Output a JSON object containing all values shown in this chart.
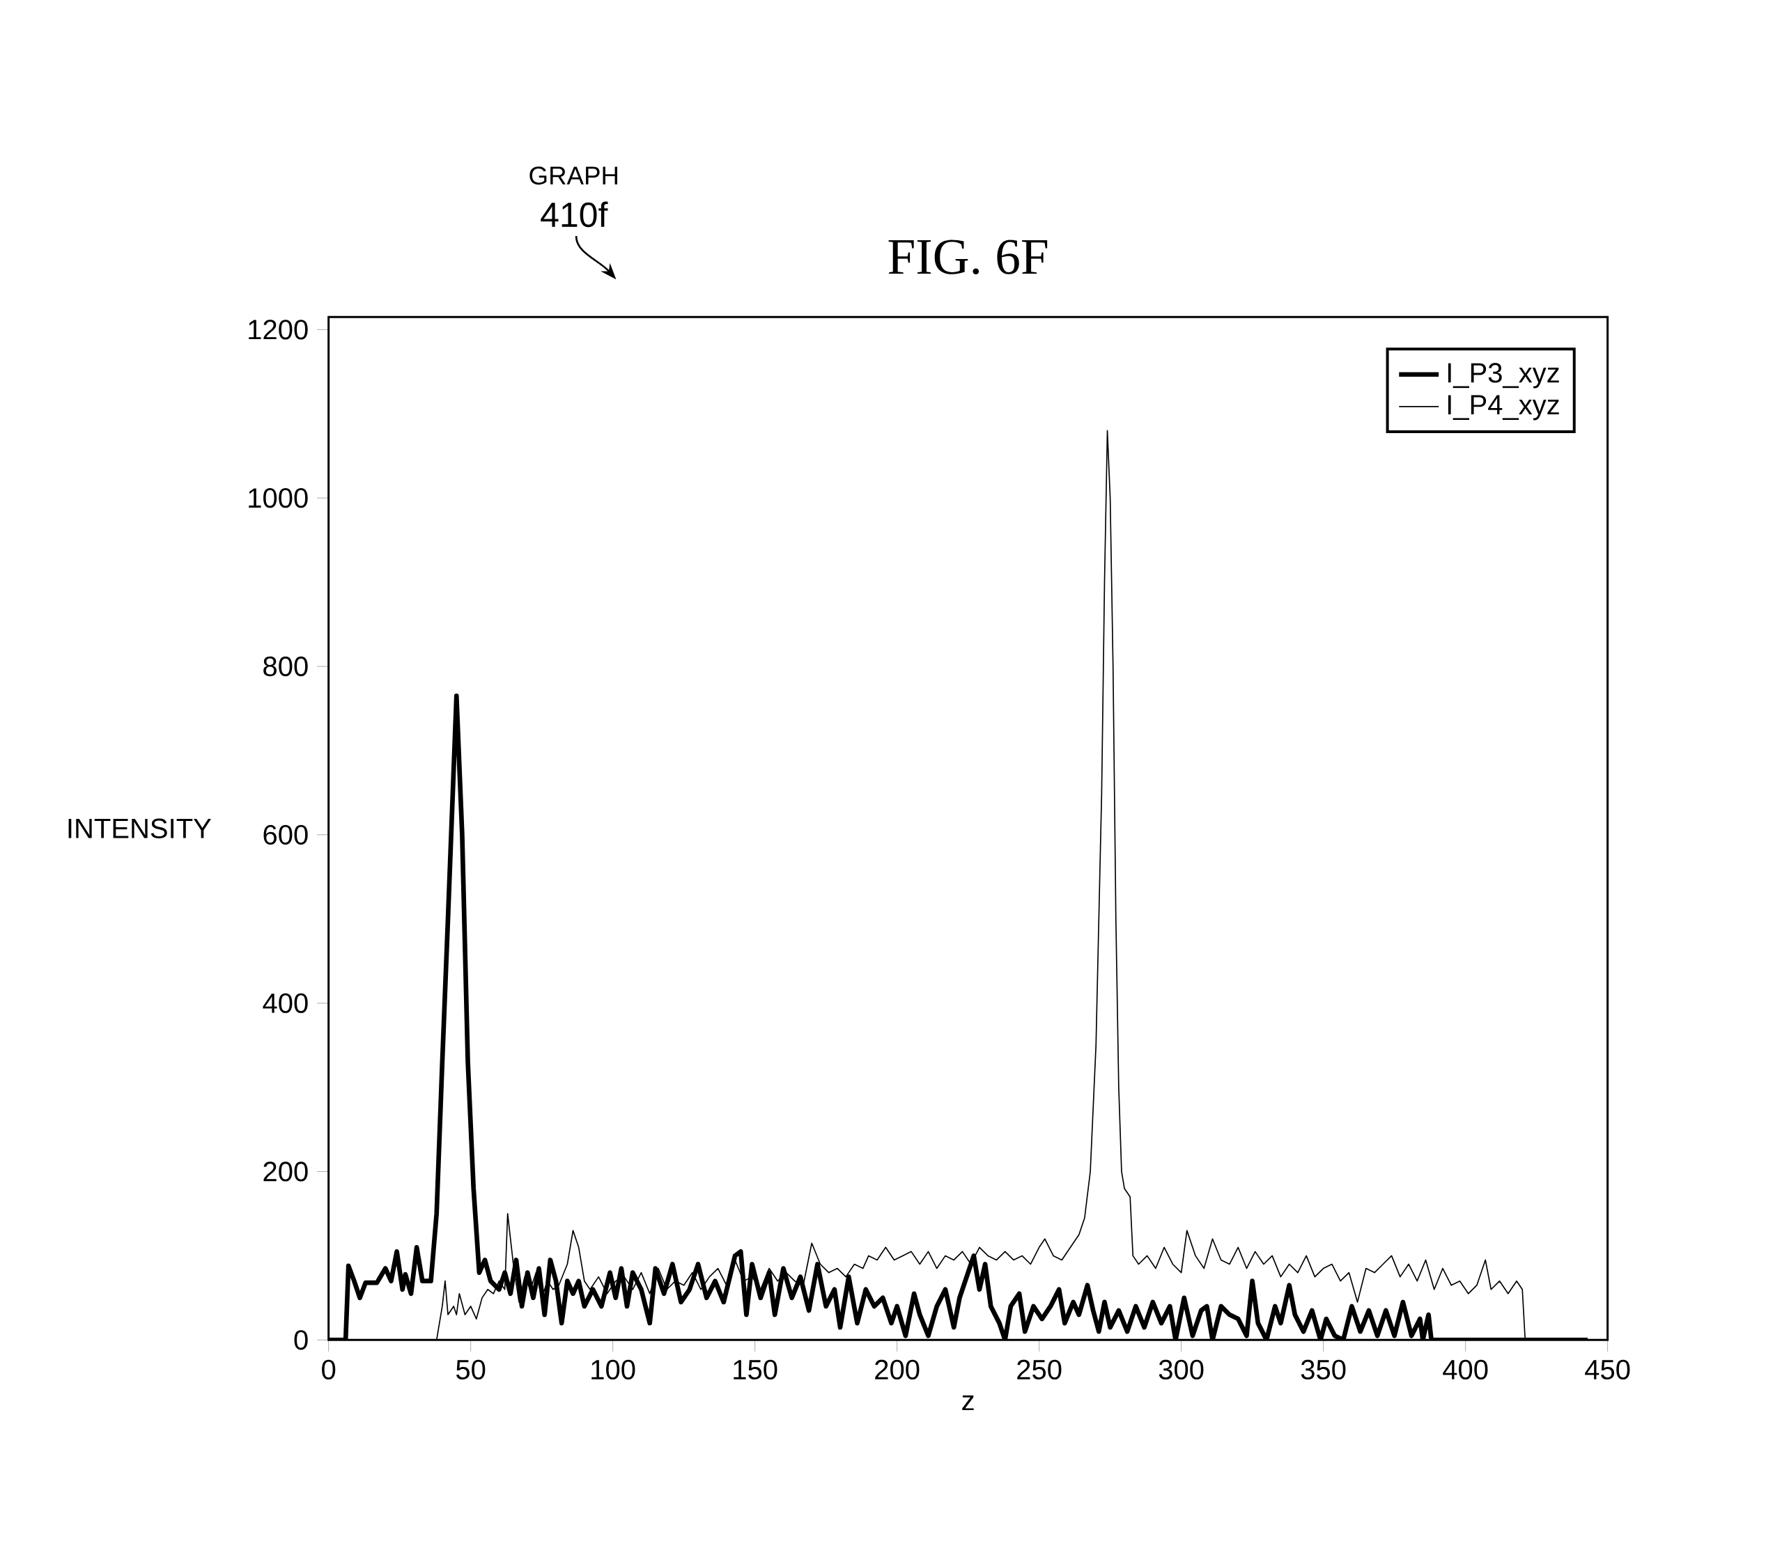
{
  "chart_data": {
    "type": "line",
    "title": "FIG. 6F",
    "xlabel": "z",
    "ylabel": "INTENSITY",
    "annotations": [
      "GRAPH",
      "410f"
    ],
    "xlim": [
      0,
      450
    ],
    "ylim": [
      0,
      1215
    ],
    "xticks": [
      0,
      50,
      100,
      150,
      200,
      250,
      300,
      350,
      400,
      450
    ],
    "yticks": [
      0,
      200,
      400,
      600,
      800,
      1000,
      1200
    ],
    "legend": "top right",
    "grid": false,
    "series": [
      {
        "name": "I_P3_xyz",
        "color": "#000000",
        "x": [
          0,
          6,
          7,
          9,
          11,
          13,
          17,
          20,
          22,
          24,
          26,
          27,
          29,
          31,
          33,
          36,
          38,
          40,
          42,
          45,
          47,
          49,
          51,
          53,
          55,
          57,
          60,
          62,
          64,
          66,
          68,
          70,
          72,
          74,
          76,
          78,
          80,
          82,
          84,
          86,
          88,
          90,
          93,
          96,
          99,
          101,
          103,
          105,
          107,
          110,
          113,
          115,
          118,
          121,
          124,
          127,
          130,
          133,
          136,
          139,
          143,
          145,
          147,
          149,
          152,
          155,
          157,
          160,
          163,
          166,
          169,
          172,
          175,
          178,
          180,
          183,
          186,
          189,
          192,
          195,
          198,
          200,
          203,
          206,
          208,
          211,
          214,
          217,
          220,
          222,
          225,
          227,
          229,
          231,
          233,
          236,
          238,
          240,
          243,
          245,
          248,
          251,
          254,
          257,
          259,
          262,
          264,
          267,
          269,
          271,
          273,
          275,
          278,
          281,
          284,
          287,
          290,
          293,
          296,
          298,
          301,
          304,
          307,
          309,
          311,
          314,
          317,
          320,
          323,
          325,
          327,
          330,
          333,
          335,
          338,
          340,
          343,
          346,
          349,
          351,
          354,
          357,
          360,
          363,
          366,
          369,
          372,
          375,
          378,
          381,
          384,
          385,
          387,
          388,
          443
        ],
        "values": [
          0,
          0,
          88,
          70,
          50,
          68,
          68,
          85,
          70,
          105,
          60,
          78,
          55,
          110,
          70,
          70,
          150,
          330,
          500,
          765,
          600,
          330,
          180,
          80,
          95,
          70,
          60,
          80,
          55,
          95,
          40,
          80,
          50,
          85,
          30,
          95,
          70,
          20,
          70,
          55,
          70,
          40,
          60,
          40,
          80,
          50,
          85,
          40,
          80,
          60,
          20,
          85,
          55,
          90,
          45,
          60,
          90,
          50,
          70,
          45,
          100,
          105,
          30,
          90,
          50,
          80,
          30,
          85,
          50,
          75,
          35,
          90,
          40,
          60,
          15,
          75,
          20,
          60,
          40,
          50,
          20,
          40,
          5,
          55,
          30,
          5,
          40,
          60,
          15,
          50,
          80,
          100,
          60,
          90,
          40,
          20,
          0,
          40,
          55,
          10,
          40,
          25,
          40,
          60,
          20,
          45,
          30,
          65,
          35,
          10,
          45,
          15,
          35,
          10,
          40,
          15,
          45,
          20,
          40,
          0,
          50,
          5,
          35,
          40,
          0,
          40,
          30,
          25,
          5,
          70,
          20,
          0,
          40,
          20,
          65,
          30,
          10,
          35,
          0,
          25,
          5,
          0,
          40,
          10,
          35,
          5,
          35,
          5,
          45,
          5,
          25,
          0,
          30,
          0,
          0
        ]
      },
      {
        "name": "I_P4_xyz",
        "color": "#000000",
        "x": [
          0,
          38,
          40,
          41,
          42,
          44,
          45,
          46,
          48,
          50,
          52,
          54,
          56,
          58,
          60,
          62,
          63,
          65,
          67,
          69,
          71,
          73,
          75,
          77,
          79,
          81,
          84,
          86,
          88,
          90,
          92,
          95,
          98,
          101,
          104,
          107,
          110,
          113,
          116,
          119,
          122,
          125,
          128,
          131,
          134,
          137,
          140,
          143,
          146,
          149,
          152,
          155,
          158,
          161,
          164,
          167,
          170,
          173,
          176,
          179,
          182,
          185,
          188,
          190,
          193,
          196,
          199,
          202,
          205,
          208,
          211,
          214,
          217,
          220,
          223,
          226,
          229,
          232,
          235,
          238,
          241,
          244,
          247,
          250,
          252,
          255,
          258,
          261,
          264,
          266,
          268,
          270,
          272,
          273,
          274,
          275,
          276,
          277,
          278,
          279,
          280,
          282,
          283,
          285,
          288,
          291,
          294,
          297,
          300,
          302,
          305,
          308,
          311,
          314,
          317,
          320,
          323,
          326,
          329,
          332,
          335,
          338,
          341,
          344,
          347,
          350,
          353,
          356,
          359,
          362,
          365,
          368,
          371,
          374,
          377,
          380,
          383,
          386,
          389,
          392,
          395,
          398,
          401,
          404,
          407,
          409,
          412,
          415,
          418,
          420,
          421,
          443
        ],
        "values": [
          0,
          0,
          40,
          70,
          30,
          40,
          30,
          55,
          30,
          40,
          25,
          50,
          60,
          55,
          70,
          60,
          150,
          90,
          45,
          75,
          60,
          80,
          50,
          70,
          60,
          65,
          90,
          130,
          110,
          70,
          60,
          75,
          55,
          70,
          75,
          60,
          80,
          55,
          85,
          60,
          70,
          65,
          80,
          60,
          75,
          85,
          65,
          95,
          70,
          75,
          60,
          85,
          70,
          80,
          70,
          65,
          115,
          90,
          80,
          85,
          75,
          90,
          85,
          100,
          95,
          110,
          95,
          100,
          105,
          90,
          105,
          85,
          100,
          95,
          105,
          90,
          110,
          100,
          95,
          105,
          95,
          100,
          90,
          110,
          120,
          100,
          95,
          110,
          125,
          145,
          200,
          350,
          650,
          900,
          1080,
          1000,
          800,
          500,
          300,
          200,
          180,
          170,
          100,
          90,
          100,
          85,
          110,
          90,
          80,
          130,
          100,
          85,
          120,
          95,
          90,
          110,
          85,
          105,
          90,
          100,
          75,
          90,
          80,
          100,
          75,
          85,
          90,
          70,
          80,
          45,
          85,
          80,
          90,
          100,
          75,
          90,
          70,
          95,
          60,
          85,
          65,
          70,
          55,
          65,
          95,
          60,
          70,
          55,
          70,
          60,
          0,
          0
        ]
      }
    ]
  }
}
